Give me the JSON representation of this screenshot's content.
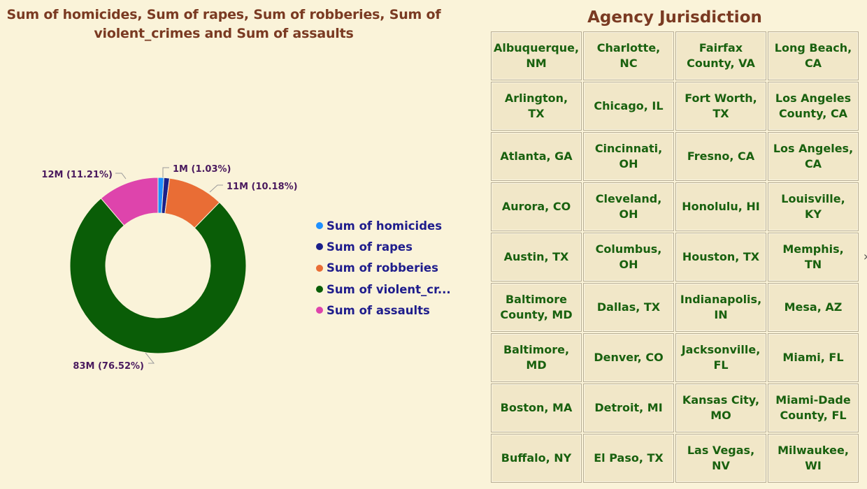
{
  "chart": {
    "title": "Sum of homicides, Sum of rapes, Sum of robberies, Sum of violent_crimes and Sum of assaults"
  },
  "chart_data": {
    "type": "pie",
    "categories": [
      "Sum of homicides",
      "Sum of rapes",
      "Sum of robberies",
      "Sum of violent_crimes",
      "Sum of assaults"
    ],
    "legend_labels": [
      "Sum of homicides",
      "Sum of rapes",
      "Sum of robberies",
      "Sum of violent_cr...",
      "Sum of assaults"
    ],
    "values": [
      1.15,
      1.12,
      11.0,
      82.7,
      12.1
    ],
    "percents": [
      1.06,
      1.03,
      10.18,
      76.52,
      11.21
    ],
    "data_labels": [
      "",
      "1M (1.03%)",
      "11M (10.18%)",
      "83M (76.52%)",
      "12M (11.21%)"
    ],
    "colors": [
      "#1e90ff",
      "#1a1f8a",
      "#e96d35",
      "#0a5d07",
      "#de44ac"
    ],
    "legend_position": "right"
  },
  "slicer": {
    "title": "Agency Jurisdiction",
    "items": [
      "Albuquerque, NM",
      "Charlotte, NC",
      "Fairfax County, VA",
      "Long Beach, CA",
      "Arlington, TX",
      "Chicago, IL",
      "Fort Worth, TX",
      "Los Angeles County, CA",
      "Atlanta, GA",
      "Cincinnati, OH",
      "Fresno, CA",
      "Los Angeles, CA",
      "Aurora, CO",
      "Cleveland, OH",
      "Honolulu, HI",
      "Louisville, KY",
      "Austin, TX",
      "Columbus, OH",
      "Houston, TX",
      "Memphis, TN",
      "Baltimore County, MD",
      "Dallas, TX",
      "Indianapolis, IN",
      "Mesa, AZ",
      "Baltimore, MD",
      "Denver, CO",
      "Jacksonville, FL",
      "Miami, FL",
      "Boston, MA",
      "Detroit, MI",
      "Kansas City, MO",
      "Miami-Dade County, FL",
      "Buffalo, NY",
      "El Paso, TX",
      "Las Vegas, NV",
      "Milwaukee, WI"
    ],
    "scroll_icon": "chevron-right-icon"
  }
}
